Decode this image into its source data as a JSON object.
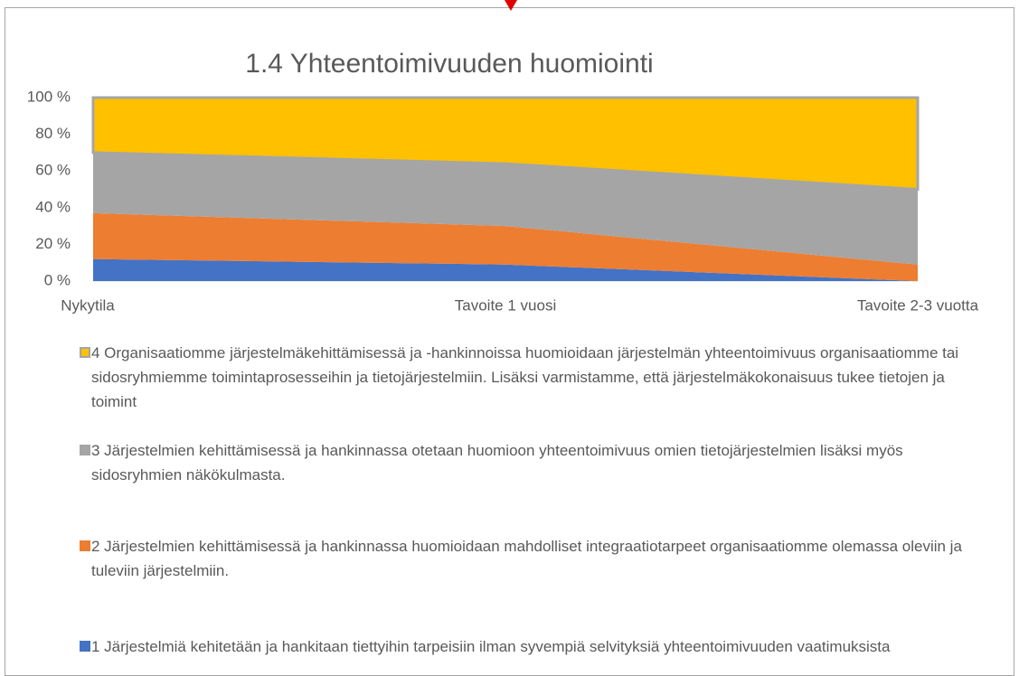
{
  "chart_data": {
    "type": "area",
    "stacked": true,
    "title": "1.4 Yhteentoimivuuden huomiointi",
    "categories": [
      "Nykytila",
      "Tavoite 1 vuosi",
      "Tavoite 2-3 vuotta"
    ],
    "series": [
      {
        "name": "1 Järjestelmiä kehitetään ja hankitaan tiettyihin tarpeisiin ilman syvempiä selvityksiä yhteentoimivuuden vaatimuksista",
        "color": "#4472c4",
        "values": [
          12,
          9,
          0
        ]
      },
      {
        "name": "2 Järjestelmien kehittämisessä ja hankinnassa huomioidaan mahdolliset integraatiotarpeet organisaatiomme olemassa oleviin ja tuleviin järjestelmiin.",
        "color": "#ed7d31",
        "values": [
          25,
          21,
          9
        ]
      },
      {
        "name": "3 Järjestelmien kehittämisessä ja hankinnassa otetaan huomioon yhteentoimivuus omien tietojärjestelmien lisäksi myös sidosryhmien näkökulmasta.",
        "color": "#a5a5a5",
        "values": [
          33,
          34,
          41
        ]
      },
      {
        "name": "4 Organisaatiomme järjestelmäkehittämisessä ja -hankinnoissa huomioidaan järjestelmän yhteentoimivuus organisaatiomme tai sidosryhmiemme toimintaprosesseihin ja tietojärjestelmiin. Lisäksi varmistamme, että järjestelmäkokonaisuus tukee tietojen ja toimint",
        "color": "#ffc000",
        "values": [
          30,
          36,
          50
        ]
      }
    ],
    "ylim": [
      0,
      100
    ],
    "yticks": [
      {
        "value": 0,
        "label": "0 %"
      },
      {
        "value": 20,
        "label": "20 %"
      },
      {
        "value": 40,
        "label": "40 %"
      },
      {
        "value": 60,
        "label": "60 %"
      },
      {
        "value": 80,
        "label": "80 %"
      },
      {
        "value": 100,
        "label": "100 %"
      }
    ],
    "legend": "bottom"
  }
}
